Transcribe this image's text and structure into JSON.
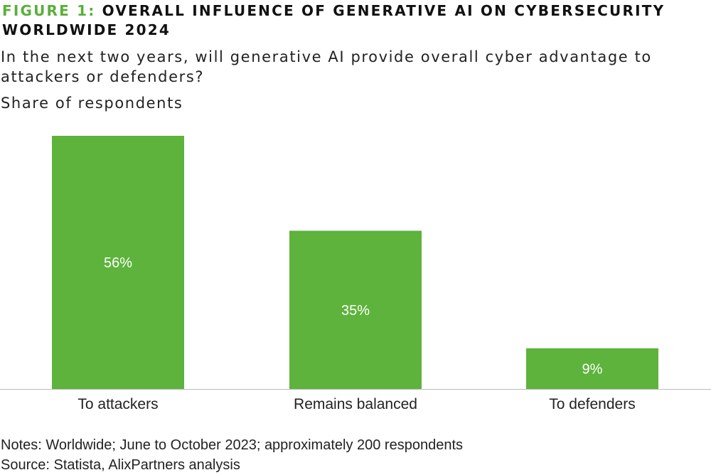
{
  "title": {
    "prefix": "FIGURE 1:",
    "text": "OVERALL INFLUENCE OF GENERATIVE AI ON CYBERSECURITY WORLDWIDE 2024"
  },
  "subtitle": "In the next two years, will generative AI provide overall cyber advantage to attackers or defenders?",
  "unit_label": "Share of respondents",
  "notes": "Notes: Worldwide; June to October 2023; approximately 200 respondents",
  "source": "Source: Statista, AlixPartners analysis",
  "colors": {
    "bar": "#5db33b",
    "accent": "#5aaf3b",
    "axis": "#bbbbbb"
  },
  "chart_data": {
    "type": "bar",
    "categories": [
      "To attackers",
      "Remains balanced",
      "To defenders"
    ],
    "values": [
      56,
      35,
      9
    ],
    "value_labels": [
      "56%",
      "35%",
      "9%"
    ],
    "unit": "%",
    "ylim": [
      0,
      56
    ],
    "grid": false,
    "legend": "none"
  }
}
